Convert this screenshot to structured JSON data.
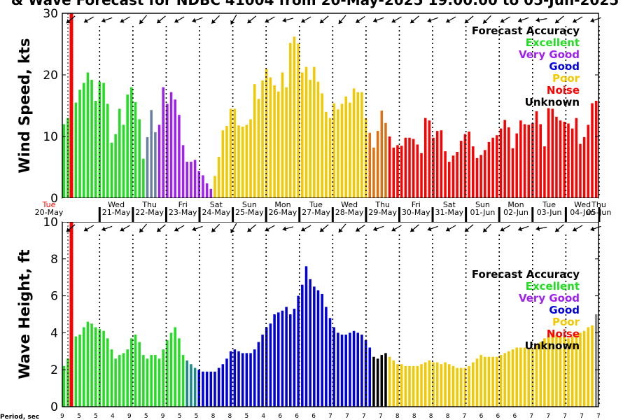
{
  "title": "& Wave Forecast for NDBC 41004 from 20-May-2025 19:00:00 to 05-Jun-2025",
  "colors": {
    "Excellent": "#22dd22",
    "Very Good": "#a020f0",
    "Good": "#0000dd",
    "Poor": "#f2c800",
    "Noise": "#ff0000",
    "Unknown": "#000000"
  },
  "legend": {
    "title": "Forecast Accuracy",
    "items": [
      "Excellent",
      "Very Good",
      "Good",
      "Poor",
      "Noise",
      "Unknown"
    ]
  },
  "days": [
    {
      "dow": "Tue",
      "date": "20-May"
    },
    {
      "dow": "Wed",
      "date": "21-May"
    },
    {
      "dow": "Thu",
      "date": "22-May"
    },
    {
      "dow": "Fri",
      "date": "23-May"
    },
    {
      "dow": "Sat",
      "date": "24-May"
    },
    {
      "dow": "Sun",
      "date": "25-May"
    },
    {
      "dow": "Mon",
      "date": "26-May"
    },
    {
      "dow": "Tue",
      "date": "27-May"
    },
    {
      "dow": "Wed",
      "date": "28-May"
    },
    {
      "dow": "Thu",
      "date": "29-May"
    },
    {
      "dow": "Fri",
      "date": "30-May"
    },
    {
      "dow": "Sat",
      "date": "31-May"
    },
    {
      "dow": "Sun",
      "date": "01-Jun"
    },
    {
      "dow": "Mon",
      "date": "02-Jun"
    },
    {
      "dow": "Tue",
      "date": "03-Jun"
    },
    {
      "dow": "Wed",
      "date": "04-Jun"
    },
    {
      "dow": "Thu",
      "date": "05-Jun"
    }
  ],
  "period": {
    "label": "Period, sec",
    "values": [
      "9",
      "5",
      "5",
      "4",
      "9",
      "5",
      "9",
      "5",
      "5",
      "8",
      "8",
      "5",
      "4",
      "6",
      "6",
      "6",
      "7",
      "7",
      "7",
      "7",
      "8",
      "8",
      "8",
      "8",
      "7",
      "6",
      "6",
      "6",
      "7",
      "7",
      "7",
      "7",
      "7"
    ]
  },
  "chart_data": [
    {
      "type": "bar",
      "ylabel": "Wind Speed, kts",
      "ylim": [
        0,
        30
      ],
      "yticks": [
        "0",
        "10",
        "20",
        "30"
      ],
      "series": [
        {
          "values": [
            12,
            13,
            16.2,
            15.5,
            17.6,
            18.7,
            20.4,
            19.2,
            15.8,
            18.9,
            18.7,
            15.3,
            9,
            10.4,
            14.5,
            11.9,
            16.8,
            18,
            15.6,
            12.8,
            6.4,
            9.9,
            14.3,
            10.7,
            11.9,
            18,
            15.3,
            17.2,
            16,
            13.5,
            8.6,
            5.9,
            5.9,
            6.2,
            4.4,
            3.7,
            2.4,
            1.5,
            3.6,
            6.7,
            11,
            11.7,
            14.5,
            14.5,
            11.8,
            11.6,
            11.9,
            12.8,
            18.5,
            16.1,
            19.1,
            21,
            19.6,
            18.3,
            17.3,
            20.4,
            18,
            25.2,
            26.2,
            25.1,
            20.4,
            21.3,
            19.2,
            21.3,
            18.9,
            17,
            14,
            13,
            15.4,
            14.4,
            15.3,
            16.5,
            15.5,
            17.8,
            17.2,
            17.2,
            13,
            10.6,
            8.2,
            10.9,
            14.2,
            12.2,
            10,
            8.2,
            8.6,
            8.5,
            9.8,
            9.8,
            9.6,
            8.7,
            7.3,
            13,
            12.6,
            9.8,
            10.9,
            11,
            7.6,
            5.9,
            6.9,
            7.5,
            9.3,
            10.4,
            10.8,
            8.4,
            6.5,
            7,
            7.8,
            9.1,
            9.8,
            10.2,
            11.3,
            12.7,
            11.5,
            8.1,
            10.5,
            12.6,
            12,
            11.9,
            12.2,
            14.1,
            12,
            8.4,
            14.6,
            14.5,
            13.2,
            12.6,
            12.4,
            12.1,
            11.3,
            13,
            8.8,
            9.9,
            11.9,
            15.4,
            15.8
          ],
          "colors": [
            "G",
            "G",
            "G",
            "G",
            "G",
            "G",
            "G",
            "G",
            "G",
            "G",
            "G",
            "G",
            "G",
            "G",
            "G",
            "G",
            "G",
            "G",
            "G",
            "G",
            "G",
            "S",
            "S",
            "S",
            "V",
            "V",
            "V",
            "V",
            "V",
            "V",
            "V",
            "V",
            "V",
            "V",
            "V",
            "V",
            "V",
            "V",
            "Y",
            "Y",
            "Y",
            "Y",
            "Y",
            "Y",
            "Y",
            "Y",
            "Y",
            "Y",
            "Y",
            "Y",
            "Y",
            "Y",
            "Y",
            "Y",
            "Y",
            "Y",
            "Y",
            "Y",
            "Y",
            "Y",
            "Y",
            "Y",
            "Y",
            "Y",
            "Y",
            "Y",
            "Y",
            "Y",
            "Y",
            "Y",
            "Y",
            "Y",
            "Y",
            "Y",
            "Y",
            "Y",
            "Y",
            "O",
            "O",
            "O",
            "O",
            "O",
            "R",
            "R",
            "R",
            "R",
            "R",
            "R",
            "R",
            "R",
            "R",
            "R",
            "R",
            "R",
            "R",
            "R",
            "R",
            "R",
            "R",
            "R",
            "R",
            "R",
            "R",
            "R",
            "R",
            "R",
            "R",
            "R",
            "R",
            "R",
            "R",
            "R",
            "R",
            "R",
            "R",
            "R",
            "R",
            "R",
            "R",
            "R",
            "R",
            "R",
            "R",
            "R",
            "R",
            "R",
            "R",
            "R",
            "R",
            "R",
            "R",
            "R",
            "R",
            "R",
            "R",
            "R"
          ]
        }
      ]
    },
    {
      "type": "bar",
      "ylabel": "Wave Height, ft",
      "ylim": [
        0,
        10
      ],
      "yticks": [
        "0",
        "2",
        "4",
        "6",
        "8",
        "10"
      ],
      "series": [
        {
          "values": [
            2.2,
            2.6,
            3.4,
            3.8,
            3.9,
            4.3,
            4.6,
            4.5,
            4.3,
            4.2,
            4.1,
            3.7,
            3.1,
            2.6,
            2.8,
            2.9,
            3.1,
            3.7,
            3.9,
            3.5,
            2.8,
            2.6,
            2.8,
            2.8,
            2.6,
            3.1,
            3.6,
            4.0,
            4.3,
            3.7,
            2.8,
            2.5,
            2.3,
            2.1,
            2.0,
            1.9,
            1.9,
            1.9,
            1.9,
            2.1,
            2.3,
            2.6,
            3.0,
            3.1,
            3.0,
            2.9,
            2.9,
            2.9,
            3.1,
            3.5,
            3.9,
            4.3,
            4.5,
            5.0,
            5.1,
            5.2,
            5.4,
            5.0,
            5.3,
            6.0,
            6.6,
            7.6,
            6.9,
            6.5,
            6.3,
            6.1,
            5.4,
            4.8,
            4.3,
            4.0,
            3.9,
            3.9,
            4.0,
            4.1,
            4.0,
            3.9,
            3.6,
            3.2,
            2.7,
            2.6,
            2.8,
            2.9,
            2.7,
            2.5,
            2.3,
            2.3,
            2.2,
            2.2,
            2.2,
            2.2,
            2.3,
            2.4,
            2.5,
            2.4,
            2.4,
            2.3,
            2.4,
            2.3,
            2.2,
            2.1,
            2.1,
            2.1,
            2.2,
            2.4,
            2.6,
            2.8,
            2.7,
            2.7,
            2.7,
            2.7,
            2.8,
            2.9,
            3.0,
            3.1,
            3.2,
            3.2,
            3.2,
            3.1,
            3.2,
            3.4,
            3.5,
            3.7,
            3.9,
            4.0,
            3.9,
            3.8,
            3.8,
            3.7,
            3.8,
            3.9,
            4.0,
            4.1,
            4.3,
            4.4,
            5.0
          ],
          "colors": [
            "G",
            "G",
            "G",
            "G",
            "G",
            "G",
            "G",
            "G",
            "G",
            "G",
            "G",
            "G",
            "G",
            "G",
            "G",
            "G",
            "G",
            "G",
            "G",
            "G",
            "G",
            "G",
            "G",
            "G",
            "G",
            "G",
            "G",
            "G",
            "G",
            "G",
            "G",
            "T",
            "T",
            "T",
            "B",
            "B",
            "B",
            "B",
            "B",
            "B",
            "B",
            "B",
            "B",
            "B",
            "B",
            "B",
            "B",
            "B",
            "B",
            "B",
            "B",
            "B",
            "B",
            "B",
            "B",
            "B",
            "B",
            "B",
            "B",
            "B",
            "B",
            "B",
            "B",
            "B",
            "B",
            "B",
            "B",
            "B",
            "B",
            "B",
            "B",
            "B",
            "B",
            "B",
            "B",
            "B",
            "B",
            "B",
            "K",
            "K",
            "K",
            "K",
            "Y",
            "Y",
            "Y",
            "Y",
            "Y",
            "Y",
            "Y",
            "Y",
            "Y",
            "Y",
            "Y",
            "Y",
            "Y",
            "Y",
            "Y",
            "Y",
            "Y",
            "Y",
            "Y",
            "Y",
            "Y",
            "Y",
            "Y",
            "Y",
            "Y",
            "Y",
            "Y",
            "Y",
            "Y",
            "Y",
            "Y",
            "Y",
            "Y",
            "Y",
            "Y",
            "Y",
            "Y",
            "Y",
            "Y",
            "Y",
            "Y",
            "Y",
            "Y",
            "Y",
            "Y",
            "Y",
            "Y",
            "Y",
            "Y",
            "Y",
            "Y",
            "Y"
          ]
        }
      ]
    }
  ],
  "arrow_directions": [
    140,
    150,
    160,
    150,
    130,
    140,
    150,
    160,
    135,
    120,
    140,
    150,
    165,
    150,
    140,
    130,
    145,
    160,
    150,
    140,
    160,
    150,
    140,
    135,
    150,
    160,
    170,
    140,
    150,
    160
  ]
}
